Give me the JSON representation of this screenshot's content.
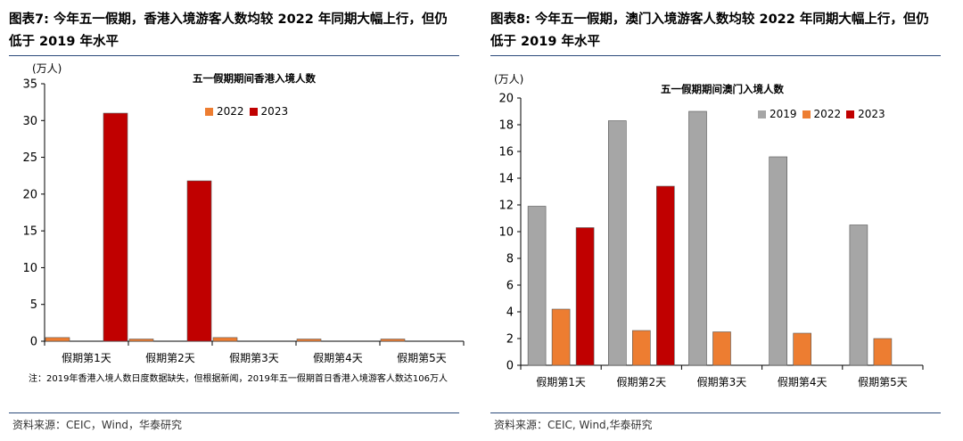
{
  "left": {
    "figure_title": "图表7:  今年五一假期，香港入境游客人数均较 2022 年同期大幅上行，但仍低于 2019 年水平",
    "unit": "(万人)",
    "note": "注：2019年香港入境人数日度数据缺失，但根据新闻，2019年五一假期首日香港入境游客人数达106万人",
    "source": "资料来源：CEIC，Wind，华泰研究"
  },
  "right": {
    "figure_title": "图表8:  今年五一假期，澳门入境游客人数均较 2022 年同期大幅上行，但仍低于 2019 年水平",
    "unit": "(万人)",
    "source": "资料来源：CEIC, Wind,华泰研究"
  },
  "colors": {
    "c2019": "#a6a6a6",
    "c2022": "#ed7d31",
    "c2023": "#c00000",
    "axis": "#000000",
    "rule": "#2b4a7a"
  },
  "chart_data": [
    {
      "type": "bar",
      "title": "五一假期期间香港入境人数",
      "categories": [
        "假期第1天",
        "假期第2天",
        "假期第3天",
        "假期第4天",
        "假期第5天"
      ],
      "series": [
        {
          "name": "2022",
          "values": [
            0.5,
            0.3,
            0.5,
            0.3,
            0.3
          ]
        },
        {
          "name": "2023",
          "values": [
            31.0,
            21.8,
            0,
            0,
            0
          ]
        }
      ],
      "ylim": [
        0,
        35
      ],
      "yticks": [
        "0",
        "5",
        "10",
        "15",
        "20",
        "25",
        "30",
        "35"
      ],
      "legend": "top-center",
      "grid": false
    },
    {
      "type": "bar",
      "title": "五一假期期间澳门入境人数",
      "categories": [
        "假期第1天",
        "假期第2天",
        "假期第3天",
        "假期第4天",
        "假期第5天"
      ],
      "series": [
        {
          "name": "2019",
          "values": [
            11.9,
            18.3,
            19.0,
            15.6,
            10.5
          ]
        },
        {
          "name": "2022",
          "values": [
            4.2,
            2.6,
            2.5,
            2.4,
            2.0
          ]
        },
        {
          "name": "2023",
          "values": [
            10.3,
            13.4,
            0,
            0,
            0
          ]
        }
      ],
      "ylim": [
        0,
        20
      ],
      "yticks": [
        "0",
        "2",
        "4",
        "6",
        "8",
        "10",
        "12",
        "14",
        "16",
        "18",
        "20"
      ],
      "legend": "top-right",
      "grid": false
    }
  ]
}
